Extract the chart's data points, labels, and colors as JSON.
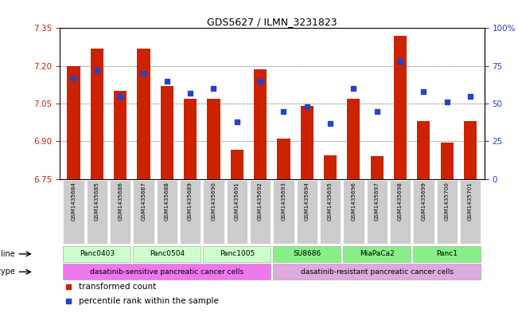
{
  "title": "GDS5627 / ILMN_3231823",
  "samples": [
    "GSM1435684",
    "GSM1435685",
    "GSM1435686",
    "GSM1435687",
    "GSM1435688",
    "GSM1435689",
    "GSM1435690",
    "GSM1435691",
    "GSM1435692",
    "GSM1435693",
    "GSM1435694",
    "GSM1435695",
    "GSM1435696",
    "GSM1435697",
    "GSM1435698",
    "GSM1435699",
    "GSM1435700",
    "GSM1435701"
  ],
  "transformed_count": [
    7.2,
    7.27,
    7.1,
    7.27,
    7.12,
    7.07,
    7.07,
    6.865,
    7.185,
    6.91,
    7.04,
    6.845,
    7.07,
    6.84,
    7.32,
    6.98,
    6.895,
    6.98
  ],
  "percentile_rank": [
    67,
    72,
    55,
    70,
    65,
    57,
    60,
    38,
    65,
    45,
    48,
    37,
    60,
    45,
    78,
    58,
    51,
    55
  ],
  "ylim_left": [
    6.75,
    7.35
  ],
  "ylim_right": [
    0,
    100
  ],
  "yticks_left": [
    6.75,
    6.9,
    7.05,
    7.2,
    7.35
  ],
  "yticks_right": [
    0,
    25,
    50,
    75,
    100
  ],
  "ytick_labels_right": [
    "0",
    "25",
    "50",
    "75",
    "100%"
  ],
  "bar_color": "#cc2200",
  "dot_color": "#2244cc",
  "baseline": 6.75,
  "cell_line_groups": [
    {
      "label": "Panc0403",
      "start": 0,
      "end": 3,
      "color": "#ccffcc"
    },
    {
      "label": "Panc0504",
      "start": 3,
      "end": 6,
      "color": "#ccffcc"
    },
    {
      "label": "Panc1005",
      "start": 6,
      "end": 9,
      "color": "#ccffcc"
    },
    {
      "label": "SU8686",
      "start": 9,
      "end": 12,
      "color": "#88ee88"
    },
    {
      "label": "MiaPaCa2",
      "start": 12,
      "end": 15,
      "color": "#88ee88"
    },
    {
      "label": "Panc1",
      "start": 15,
      "end": 18,
      "color": "#88ee88"
    }
  ],
  "cell_type_groups": [
    {
      "label": "dasatinib-sensitive pancreatic cancer cells",
      "start": 0,
      "end": 9,
      "color": "#ee77ee"
    },
    {
      "label": "dasatinib-resistant pancreatic cancer cells",
      "start": 9,
      "end": 18,
      "color": "#ddaadd"
    }
  ],
  "legend_items": [
    {
      "label": "transformed count",
      "color": "#cc2200"
    },
    {
      "label": "percentile rank within the sample",
      "color": "#2244cc"
    }
  ],
  "background_color": "#ffffff",
  "sample_box_color": "#cccccc"
}
